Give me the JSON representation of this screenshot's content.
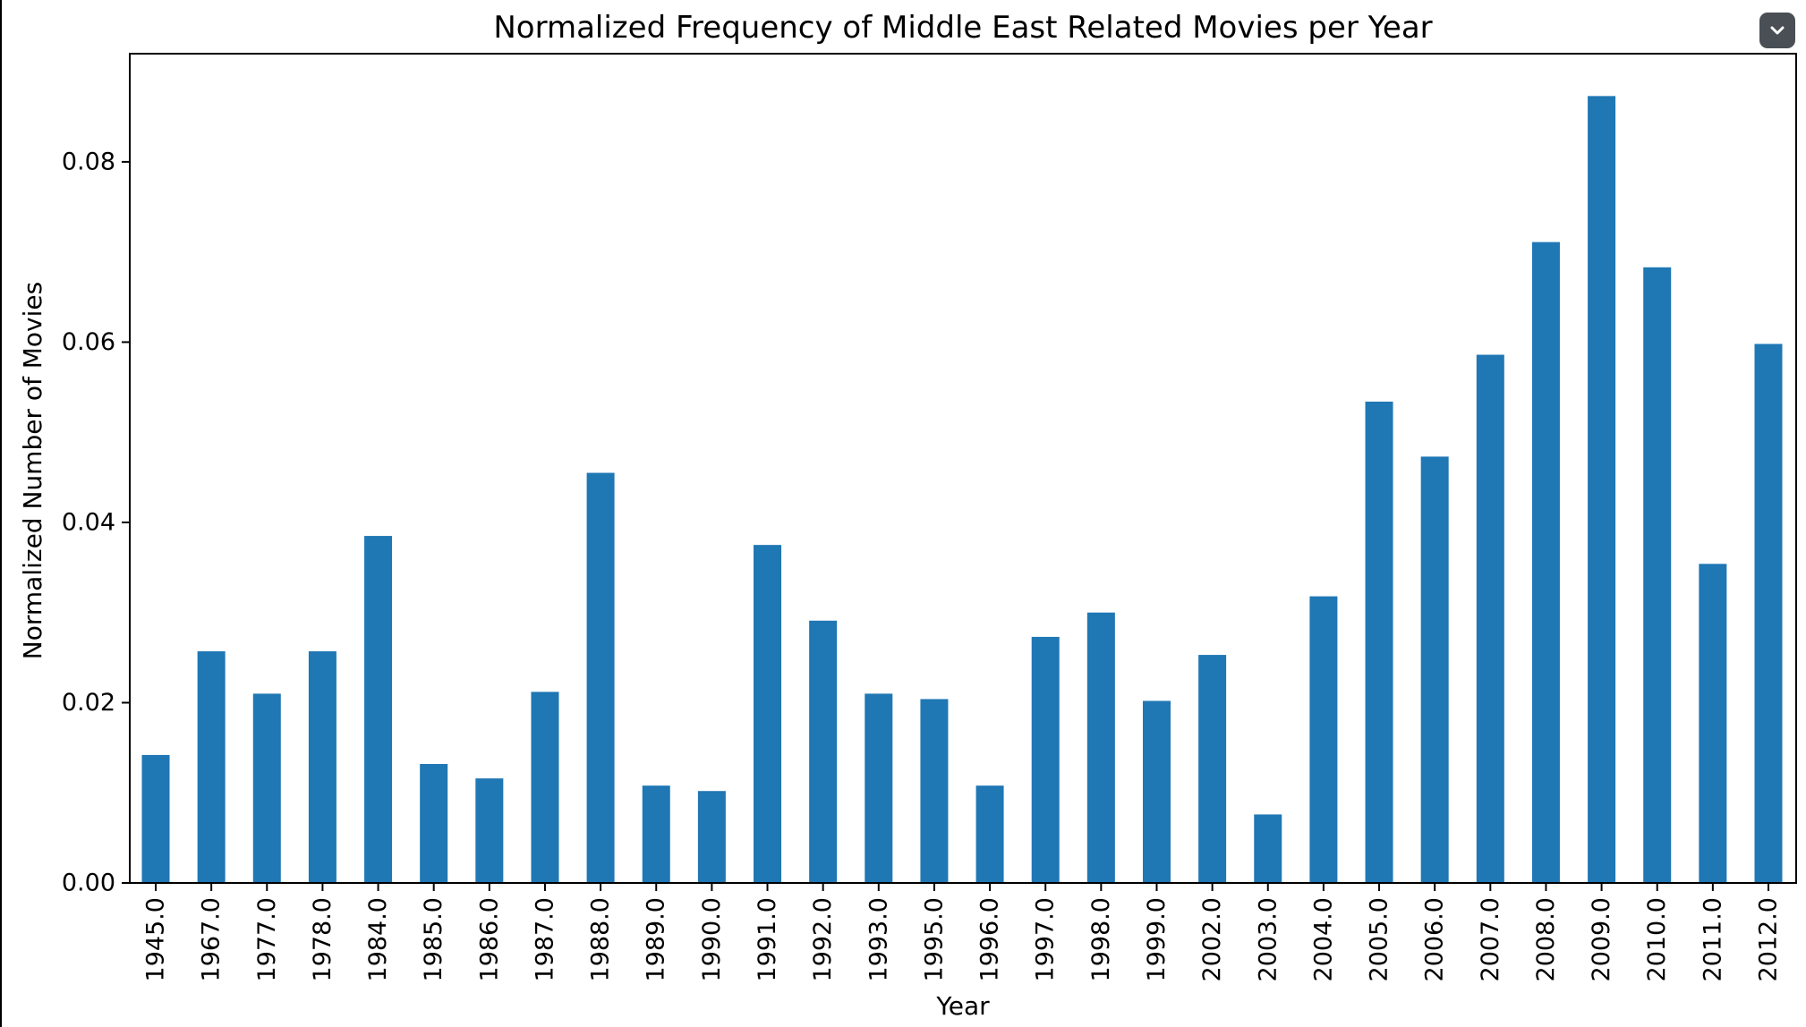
{
  "chart_data": {
    "type": "bar",
    "title": "Normalized Frequency of Middle East Related Movies per Year",
    "xlabel": "Year",
    "ylabel": "Normalized Number of Movies",
    "categories": [
      "1945.0",
      "1967.0",
      "1977.0",
      "1978.0",
      "1984.0",
      "1985.0",
      "1986.0",
      "1987.0",
      "1988.0",
      "1989.0",
      "1990.0",
      "1991.0",
      "1992.0",
      "1993.0",
      "1995.0",
      "1996.0",
      "1997.0",
      "1998.0",
      "1999.0",
      "2002.0",
      "2003.0",
      "2004.0",
      "2005.0",
      "2006.0",
      "2007.0",
      "2008.0",
      "2009.0",
      "2010.0",
      "2011.0",
      "2012.0"
    ],
    "values": [
      0.0142,
      0.0257,
      0.021,
      0.0257,
      0.0385,
      0.0132,
      0.0116,
      0.0212,
      0.0455,
      0.0108,
      0.0102,
      0.0375,
      0.0291,
      0.021,
      0.0204,
      0.0108,
      0.0273,
      0.03,
      0.0202,
      0.0253,
      0.0076,
      0.0318,
      0.0534,
      0.0473,
      0.0586,
      0.0711,
      0.0873,
      0.0683,
      0.0354,
      0.0598
    ],
    "yticks": [
      "0.00",
      "0.02",
      "0.04",
      "0.06",
      "0.08"
    ],
    "ylim": [
      0,
      0.092
    ],
    "grid": false,
    "bar_color": "#1f77b4"
  },
  "ui": {
    "menu_button_icon": "chevron-down-icon"
  }
}
